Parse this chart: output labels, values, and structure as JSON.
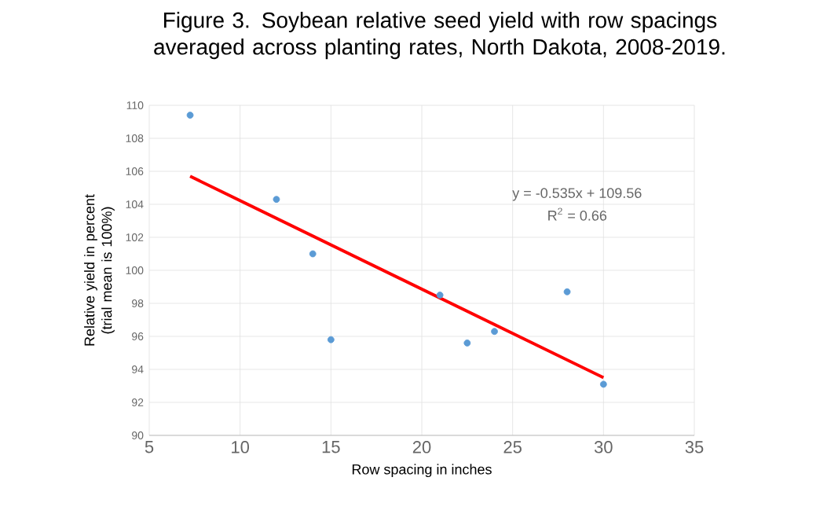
{
  "chart_data": {
    "type": "scatter",
    "title": "Figure 3. Soybean relative seed yield with row spacings averaged across planting rates, North Dakota, 2008-2019.",
    "xlabel": "Row spacing in inches",
    "ylabel": "Relative yield in percent (trial mean is 100%)",
    "series": [
      {
        "color": "#5b9bd5",
        "marker": "circle",
        "x": [
          7.25,
          12,
          14,
          15,
          21,
          22.5,
          24,
          28,
          30
        ],
        "values": [
          109.4,
          104.3,
          101.0,
          95.8,
          98.5,
          95.6,
          96.3,
          98.7,
          93.1
        ]
      },
      {
        "type": "line",
        "color": "#ff0000",
        "marker": "none",
        "x": [
          7.25,
          30
        ],
        "values": [
          105.7,
          93.5
        ]
      }
    ],
    "annotations": [
      "y = -0.535x + 109.56",
      "R$^{2}$ = 0.66"
    ],
    "xlim": [
      5,
      35
    ],
    "xticks": [
      5,
      10,
      15,
      20,
      25,
      30,
      35
    ],
    "ylim": [
      90,
      110
    ],
    "yticks": [
      90,
      92,
      94,
      96,
      98,
      100,
      102,
      104,
      106,
      108,
      110
    ],
    "grid": true
  }
}
